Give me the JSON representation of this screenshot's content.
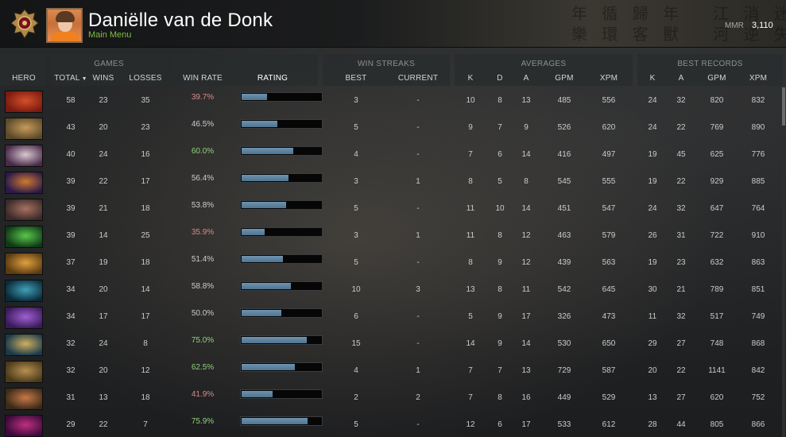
{
  "profile": {
    "name": "Daniëlle van de Donk",
    "menu_link": "Main Menu",
    "mmr_label": "MMR",
    "mmr_value": "3,110",
    "emblem_icon": "rank-medal-icon",
    "avatar_icon": "player-avatar-icon"
  },
  "header_art_text": "年 循 歸 年   江 消 迷\n樂 環 客 獸   河 逆 失",
  "groups": {
    "games": "GAMES",
    "win_streaks": "WIN STREAKS",
    "averages": "AVERAGES",
    "best_records": "BEST RECORDS"
  },
  "columns": {
    "hero": "HERO",
    "total": "TOTAL",
    "wins": "WINS",
    "losses": "LOSSES",
    "win_rate": "WIN RATE",
    "rating": "RATING",
    "best": "BEST",
    "current": "CURRENT",
    "k": "K",
    "d": "D",
    "a": "A",
    "gpm": "GPM",
    "xpm": "XPM",
    "rec_k": "K",
    "rec_a": "A",
    "rec_gpm": "GPM",
    "rec_xpm": "XPM"
  },
  "colors": {
    "winrate_low": "#d98a8a",
    "winrate_high": "#8fd17a",
    "winrate_mid": "#c9ccce"
  },
  "rows": [
    {
      "hero_icon": "hero-portrait-red-demon-icon",
      "total": "58",
      "wins": "23",
      "losses": "35",
      "win_rate": "39.7%",
      "rating": 0.32,
      "best": "3",
      "current": "-",
      "k": "10",
      "d": "8",
      "a": "13",
      "gpm": "485",
      "xpm": "556",
      "rk": "24",
      "ra": "32",
      "rgpm": "820",
      "rxpm": "832",
      "c1": "#7a1a10",
      "c2": "#d4502a"
    },
    {
      "hero_icon": "hero-portrait-beast-icon",
      "total": "43",
      "wins": "20",
      "losses": "23",
      "win_rate": "46.5%",
      "rating": 0.45,
      "best": "5",
      "current": "-",
      "k": "9",
      "d": "7",
      "a": "9",
      "gpm": "526",
      "xpm": "620",
      "rk": "24",
      "ra": "22",
      "rgpm": "769",
      "rxpm": "890",
      "c1": "#5a4a2a",
      "c2": "#c89a5a"
    },
    {
      "hero_icon": "hero-portrait-pale-mage-icon",
      "total": "40",
      "wins": "24",
      "losses": "16",
      "win_rate": "60.0%",
      "rating": 0.65,
      "best": "4",
      "current": "-",
      "k": "7",
      "d": "6",
      "a": "14",
      "gpm": "416",
      "xpm": "497",
      "rk": "19",
      "ra": "45",
      "rgpm": "625",
      "rxpm": "776",
      "c1": "#4a2a4a",
      "c2": "#d8c8d0"
    },
    {
      "hero_icon": "hero-portrait-purple-warrior-icon",
      "total": "39",
      "wins": "22",
      "losses": "17",
      "win_rate": "56.4%",
      "rating": 0.59,
      "best": "3",
      "current": "1",
      "k": "8",
      "d": "5",
      "a": "8",
      "gpm": "545",
      "xpm": "555",
      "rk": "19",
      "ra": "22",
      "rgpm": "929",
      "rxpm": "885",
      "c1": "#2a1a4a",
      "c2": "#d07830"
    },
    {
      "hero_icon": "hero-portrait-brute-icon",
      "total": "39",
      "wins": "21",
      "losses": "18",
      "win_rate": "53.8%",
      "rating": 0.56,
      "best": "5",
      "current": "-",
      "k": "11",
      "d": "10",
      "a": "14",
      "gpm": "451",
      "xpm": "547",
      "rk": "24",
      "ra": "32",
      "rgpm": "647",
      "rxpm": "764",
      "c1": "#3a2a2a",
      "c2": "#a87060"
    },
    {
      "hero_icon": "hero-portrait-green-insect-icon",
      "total": "39",
      "wins": "14",
      "losses": "25",
      "win_rate": "35.9%",
      "rating": 0.29,
      "best": "3",
      "current": "1",
      "k": "11",
      "d": "8",
      "a": "12",
      "gpm": "463",
      "xpm": "579",
      "rk": "26",
      "ra": "31",
      "rgpm": "722",
      "rxpm": "910",
      "c1": "#0f3a18",
      "c2": "#5ac84a"
    },
    {
      "hero_icon": "hero-portrait-golden-knight-icon",
      "total": "37",
      "wins": "19",
      "losses": "18",
      "win_rate": "51.4%",
      "rating": 0.52,
      "best": "5",
      "current": "-",
      "k": "8",
      "d": "9",
      "a": "12",
      "gpm": "439",
      "xpm": "563",
      "rk": "19",
      "ra": "23",
      "rgpm": "632",
      "rxpm": "863",
      "c1": "#5a3a10",
      "c2": "#e0a040"
    },
    {
      "hero_icon": "hero-portrait-teal-assassin-icon",
      "total": "34",
      "wins": "20",
      "losses": "14",
      "win_rate": "58.8%",
      "rating": 0.62,
      "best": "10",
      "current": "3",
      "k": "13",
      "d": "8",
      "a": "11",
      "gpm": "542",
      "xpm": "645",
      "rk": "30",
      "ra": "21",
      "rgpm": "789",
      "rxpm": "851",
      "c1": "#0a2a3a",
      "c2": "#40a0b8"
    },
    {
      "hero_icon": "hero-portrait-violet-spirit-icon",
      "total": "34",
      "wins": "17",
      "losses": "17",
      "win_rate": "50.0%",
      "rating": 0.5,
      "best": "6",
      "current": "-",
      "k": "5",
      "d": "9",
      "a": "17",
      "gpm": "326",
      "xpm": "473",
      "rk": "11",
      "ra": "32",
      "rgpm": "517",
      "rxpm": "749",
      "c1": "#3a1a5a",
      "c2": "#a060d0"
    },
    {
      "hero_icon": "hero-portrait-blue-armor-icon",
      "total": "32",
      "wins": "24",
      "losses": "8",
      "win_rate": "75.0%",
      "rating": 0.82,
      "best": "15",
      "current": "-",
      "k": "14",
      "d": "9",
      "a": "14",
      "gpm": "530",
      "xpm": "650",
      "rk": "29",
      "ra": "27",
      "rgpm": "748",
      "rxpm": "868",
      "c1": "#1a3a4a",
      "c2": "#d0b060"
    },
    {
      "hero_icon": "hero-portrait-orc-chief-icon",
      "total": "32",
      "wins": "20",
      "losses": "12",
      "win_rate": "62.5%",
      "rating": 0.67,
      "best": "4",
      "current": "1",
      "k": "7",
      "d": "7",
      "a": "13",
      "gpm": "729",
      "xpm": "587",
      "rk": "20",
      "ra": "22",
      "rgpm": "1141",
      "rxpm": "842",
      "c1": "#4a3a1a",
      "c2": "#b89050"
    },
    {
      "hero_icon": "hero-portrait-goblin-icon",
      "total": "31",
      "wins": "13",
      "losses": "18",
      "win_rate": "41.9%",
      "rating": 0.39,
      "best": "2",
      "current": "2",
      "k": "7",
      "d": "8",
      "a": "16",
      "gpm": "449",
      "xpm": "529",
      "rk": "13",
      "ra": "27",
      "rgpm": "620",
      "rxpm": "752",
      "c1": "#3a2a18",
      "c2": "#c87848"
    },
    {
      "hero_icon": "hero-portrait-crimson-wraith-icon",
      "total": "29",
      "wins": "22",
      "losses": "7",
      "win_rate": "75.9%",
      "rating": 0.83,
      "best": "5",
      "current": "-",
      "k": "12",
      "d": "6",
      "a": "17",
      "gpm": "533",
      "xpm": "612",
      "rk": "28",
      "ra": "44",
      "rgpm": "805",
      "rxpm": "866",
      "c1": "#3a0a3a",
      "c2": "#c03080"
    }
  ]
}
